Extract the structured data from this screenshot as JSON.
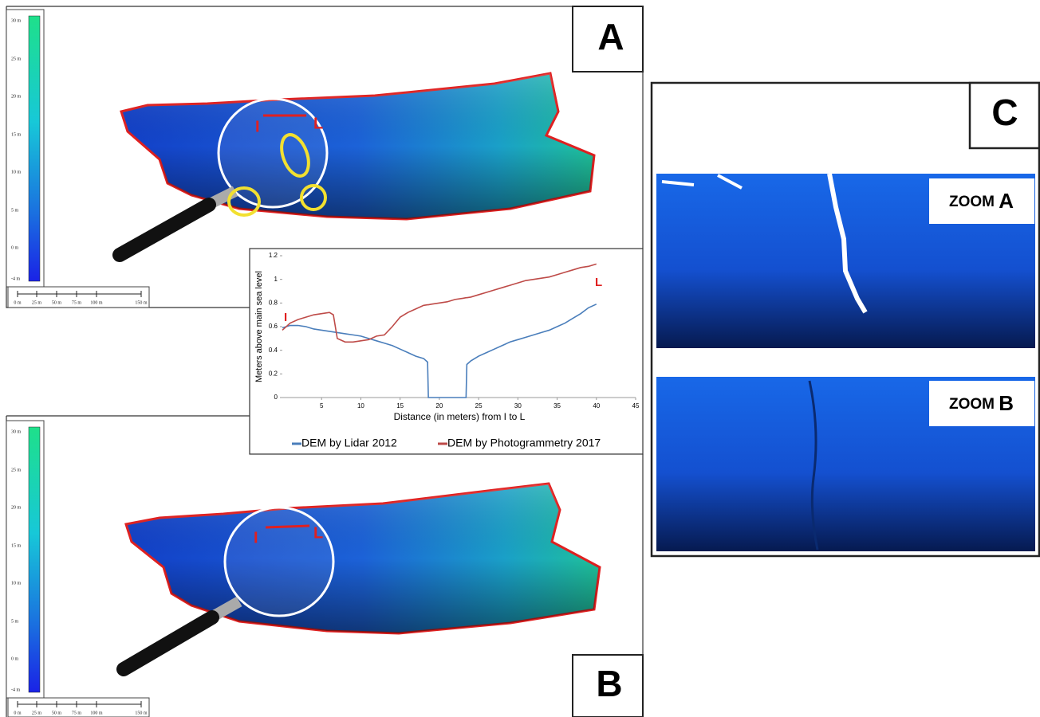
{
  "panel_a": {
    "label": "A",
    "section_start": "I",
    "section_end": "L"
  },
  "panel_b": {
    "label": "B",
    "section_start": "I",
    "section_end": "L"
  },
  "panel_c": {
    "label": "C",
    "zoom_a": {
      "word": "ZOOM",
      "letter": "A"
    },
    "zoom_b": {
      "word": "ZOOM",
      "letter": "B"
    }
  },
  "color_scale": [
    "30 m",
    "25 m",
    "20 m",
    "15 m",
    "10 m",
    "5 m",
    "0 m",
    "-4 m"
  ],
  "scale_bar": [
    "0 m",
    "25 m",
    "50 m",
    "75 m",
    "100 m",
    "150 m"
  ],
  "chart_data": {
    "type": "line",
    "y_label": "Meters above main sea level",
    "x_label": "Distance (in meters) from I to L",
    "annotations": {
      "start": "I",
      "end": "L"
    },
    "x": [
      0,
      1,
      2,
      3,
      4,
      5,
      6,
      6.5,
      7,
      8,
      9,
      10,
      11,
      12,
      13,
      14,
      15,
      16,
      17,
      18,
      18.5,
      18.6,
      19,
      20,
      21,
      22,
      23,
      23.4,
      23.5,
      24,
      25,
      26,
      27,
      28,
      29,
      30,
      31,
      32,
      33,
      34,
      35,
      36,
      37,
      38,
      39,
      40
    ],
    "series": [
      {
        "name": "DEM by Lidar 2012",
        "color": "#4a7ebb",
        "values": [
          0.59,
          0.61,
          0.61,
          0.6,
          0.58,
          0.57,
          0.56,
          0.555,
          0.55,
          0.54,
          0.53,
          0.52,
          0.5,
          0.48,
          0.46,
          0.44,
          0.41,
          0.38,
          0.35,
          0.33,
          0.3,
          0,
          0,
          0,
          0,
          0,
          0,
          0,
          0.28,
          0.31,
          0.35,
          0.38,
          0.41,
          0.44,
          0.47,
          0.49,
          0.51,
          0.53,
          0.55,
          0.57,
          0.6,
          0.63,
          0.67,
          0.71,
          0.76,
          0.79
        ]
      },
      {
        "name": "DEM by Photogrammetry 2017",
        "color": "#be4b48",
        "values": [
          0.57,
          0.63,
          0.66,
          0.68,
          0.7,
          0.71,
          0.72,
          0.7,
          0.5,
          0.47,
          0.47,
          0.48,
          0.49,
          0.52,
          0.53,
          0.6,
          0.68,
          0.72,
          0.75,
          0.78,
          0.785,
          0.785,
          0.79,
          0.8,
          0.81,
          0.83,
          0.84,
          0.845,
          0.845,
          0.85,
          0.87,
          0.89,
          0.91,
          0.93,
          0.95,
          0.97,
          0.99,
          1.0,
          1.01,
          1.02,
          1.04,
          1.06,
          1.08,
          1.1,
          1.11,
          1.13
        ]
      }
    ],
    "xlim": [
      0,
      45
    ],
    "xticks": [
      5,
      10,
      15,
      20,
      25,
      30,
      35,
      40,
      45
    ],
    "ylim": [
      0,
      1.2
    ],
    "yticks": [
      0,
      0.2,
      0.4,
      0.6,
      0.8,
      1,
      1.2
    ]
  }
}
